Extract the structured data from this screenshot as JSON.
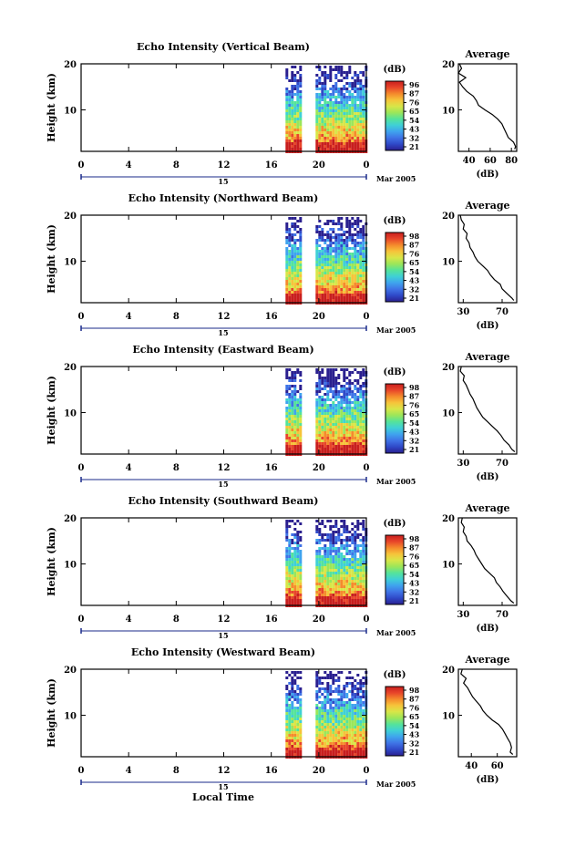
{
  "colors": {
    "colorbar": [
      "#2a1f8f",
      "#2f49c8",
      "#3f73e6",
      "#3fa3ee",
      "#3fd0d6",
      "#55e39a",
      "#9be65a",
      "#d8e648",
      "#f6c43a",
      "#f58a2c",
      "#e8452a",
      "#c81e1e"
    ]
  },
  "shared": {
    "x_tick_labels": [
      "0",
      "4",
      "8",
      "12",
      "16",
      "20",
      "0"
    ],
    "date_center": "15",
    "date_right": "Mar 2005",
    "x_axis_title": "Local Time",
    "y_axis_label": "Height (km)",
    "y_tick_labels": [
      "20",
      "10"
    ],
    "colorbar_unit": "(dB)",
    "profile_title": "Average",
    "profile_xlabel": "(dB)"
  },
  "chart_data": [
    {
      "type": "heatmap",
      "title": "Echo Intensity (Vertical Beam)",
      "ylabel": "Height (km)",
      "xlabel": "Local Time",
      "x_ticks": [
        0,
        4,
        8,
        12,
        16,
        20,
        24
      ],
      "y_ticks": [
        10,
        20
      ],
      "xlim": [
        0,
        24
      ],
      "ylim": [
        1,
        20
      ],
      "data_span_hours": [
        17.2,
        24
      ],
      "gap_hours": [
        18.8,
        19.6
      ],
      "colorbar": {
        "unit": "(dB)",
        "ticks": [
          "96",
          "87",
          "76",
          "65",
          "54",
          "43",
          "32",
          "21"
        ]
      },
      "profile": {
        "title": "Average",
        "xlabel": "(dB)",
        "xticks": [
          "40",
          "60",
          "80"
        ],
        "xlim": [
          30,
          85
        ],
        "height_km": [
          20,
          19,
          18,
          17,
          16,
          15,
          14,
          13,
          12,
          11,
          10,
          9,
          8,
          7,
          6,
          5,
          4,
          3,
          2,
          1.5
        ],
        "db": [
          31,
          33,
          30,
          37,
          31,
          34,
          38,
          44,
          47,
          49,
          55,
          62,
          67,
          71,
          73,
          75,
          77,
          82,
          84,
          83
        ]
      }
    },
    {
      "type": "heatmap",
      "title": "Echo Intensity (Northward Beam)",
      "ylabel": "Height (km)",
      "xlabel": "Local Time",
      "x_ticks": [
        0,
        4,
        8,
        12,
        16,
        20,
        24
      ],
      "y_ticks": [
        10,
        20
      ],
      "xlim": [
        0,
        24
      ],
      "ylim": [
        1,
        20
      ],
      "data_span_hours": [
        17.2,
        24
      ],
      "gap_hours": [
        18.8,
        19.6
      ],
      "colorbar": {
        "unit": "(dB)",
        "ticks": [
          "98",
          "87",
          "76",
          "65",
          "54",
          "43",
          "32",
          "21"
        ]
      },
      "profile": {
        "title": "Average",
        "xlabel": "(dB)",
        "xticks": [
          "30",
          "70"
        ],
        "xlim": [
          25,
          85
        ],
        "height_km": [
          20,
          19,
          18,
          17,
          16,
          15,
          14,
          13,
          12,
          11,
          10,
          9,
          8,
          7,
          6,
          5,
          4,
          3,
          2,
          1.5
        ],
        "db": [
          27,
          28,
          31,
          30,
          34,
          33,
          36,
          37,
          40,
          42,
          45,
          50,
          55,
          58,
          62,
          68,
          70,
          75,
          80,
          82
        ]
      }
    },
    {
      "type": "heatmap",
      "title": "Echo Intensity (Eastward Beam)",
      "ylabel": "Height (km)",
      "xlabel": "Local Time",
      "x_ticks": [
        0,
        4,
        8,
        12,
        16,
        20,
        24
      ],
      "y_ticks": [
        10,
        20
      ],
      "xlim": [
        0,
        24
      ],
      "ylim": [
        1,
        20
      ],
      "data_span_hours": [
        17.2,
        24
      ],
      "gap_hours": [
        18.8,
        19.6
      ],
      "colorbar": {
        "unit": "(dB)",
        "ticks": [
          "98",
          "87",
          "76",
          "65",
          "54",
          "43",
          "32",
          "21"
        ]
      },
      "profile": {
        "title": "Average",
        "xlabel": "(dB)",
        "xticks": [
          "30",
          "70"
        ],
        "xlim": [
          25,
          85
        ],
        "height_km": [
          20,
          19,
          18,
          17,
          16,
          15,
          14,
          13,
          12,
          11,
          10,
          9,
          8,
          7,
          6,
          5,
          4,
          3,
          2,
          1.5
        ],
        "db": [
          28,
          27,
          31,
          30,
          33,
          35,
          37,
          40,
          42,
          44,
          47,
          50,
          55,
          60,
          65,
          69,
          72,
          77,
          80,
          83
        ]
      }
    },
    {
      "type": "heatmap",
      "title": "Echo Intensity (Southward Beam)",
      "ylabel": "Height (km)",
      "xlabel": "Local Time",
      "x_ticks": [
        0,
        4,
        8,
        12,
        16,
        20,
        24
      ],
      "y_ticks": [
        10,
        20
      ],
      "xlim": [
        0,
        24
      ],
      "ylim": [
        1,
        20
      ],
      "data_span_hours": [
        17.2,
        24
      ],
      "gap_hours": [
        18.8,
        19.6
      ],
      "colorbar": {
        "unit": "(dB)",
        "ticks": [
          "98",
          "87",
          "76",
          "65",
          "54",
          "43",
          "32",
          "21"
        ]
      },
      "profile": {
        "title": "Average",
        "xlabel": "(dB)",
        "xticks": [
          "30",
          "70"
        ],
        "xlim": [
          25,
          85
        ],
        "height_km": [
          20,
          19,
          18,
          17,
          16,
          15,
          14,
          13,
          12,
          11,
          10,
          9,
          8,
          7,
          6,
          5,
          4,
          3,
          2,
          1.5
        ],
        "db": [
          29,
          28,
          31,
          30,
          33,
          34,
          38,
          41,
          43,
          46,
          49,
          52,
          57,
          62,
          64,
          68,
          71,
          75,
          79,
          82
        ]
      }
    },
    {
      "type": "heatmap",
      "title": "Echo Intensity (Westward Beam)",
      "ylabel": "Height (km)",
      "xlabel": "Local Time",
      "x_ticks": [
        0,
        4,
        8,
        12,
        16,
        20,
        24
      ],
      "y_ticks": [
        10,
        20
      ],
      "xlim": [
        0,
        24
      ],
      "ylim": [
        1,
        20
      ],
      "data_span_hours": [
        17.2,
        24
      ],
      "gap_hours": [
        18.8,
        19.6
      ],
      "colorbar": {
        "unit": "(dB)",
        "ticks": [
          "98",
          "87",
          "76",
          "65",
          "54",
          "43",
          "32",
          "21"
        ]
      },
      "profile": {
        "title": "Average",
        "xlabel": "(dB)",
        "xticks": [
          "40",
          "60"
        ],
        "xlim": [
          30,
          75
        ],
        "height_km": [
          20,
          19,
          18,
          17,
          16,
          15,
          14,
          13,
          12,
          11,
          10,
          9,
          8,
          7,
          6,
          5,
          4,
          3,
          2,
          1.5
        ],
        "db": [
          33,
          32,
          36,
          34,
          37,
          39,
          41,
          44,
          47,
          49,
          52,
          56,
          61,
          64,
          66,
          68,
          70,
          71,
          70,
          72
        ]
      }
    }
  ]
}
